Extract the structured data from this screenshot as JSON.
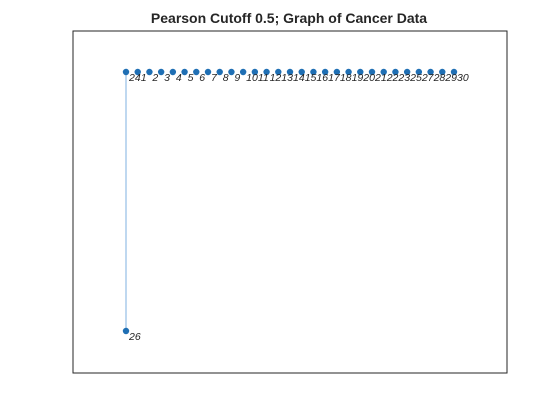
{
  "chart_data": {
    "type": "graph",
    "title": "Pearson Cutoff 0.5; Graph of Cancer Data",
    "axes_box": "on",
    "ticks": "off",
    "grid": "off",
    "colors": {
      "node": "#1f6fb4",
      "edge": "#7fb2e0",
      "text": "#262626",
      "axes": "#262626"
    },
    "nodes": [
      {
        "label": "24",
        "x": 1,
        "y": 2
      },
      {
        "label": "1",
        "x": 2,
        "y": 2
      },
      {
        "label": "2",
        "x": 3,
        "y": 2
      },
      {
        "label": "3",
        "x": 4,
        "y": 2
      },
      {
        "label": "4",
        "x": 5,
        "y": 2
      },
      {
        "label": "5",
        "x": 6,
        "y": 2
      },
      {
        "label": "6",
        "x": 7,
        "y": 2
      },
      {
        "label": "7",
        "x": 8,
        "y": 2
      },
      {
        "label": "8",
        "x": 9,
        "y": 2
      },
      {
        "label": "9",
        "x": 10,
        "y": 2
      },
      {
        "label": "10",
        "x": 11,
        "y": 2
      },
      {
        "label": "11",
        "x": 12,
        "y": 2
      },
      {
        "label": "12",
        "x": 13,
        "y": 2
      },
      {
        "label": "13",
        "x": 14,
        "y": 2
      },
      {
        "label": "14",
        "x": 15,
        "y": 2
      },
      {
        "label": "15",
        "x": 16,
        "y": 2
      },
      {
        "label": "16",
        "x": 17,
        "y": 2
      },
      {
        "label": "17",
        "x": 18,
        "y": 2
      },
      {
        "label": "18",
        "x": 19,
        "y": 2
      },
      {
        "label": "19",
        "x": 20,
        "y": 2
      },
      {
        "label": "20",
        "x": 21,
        "y": 2
      },
      {
        "label": "21",
        "x": 22,
        "y": 2
      },
      {
        "label": "22",
        "x": 23,
        "y": 2
      },
      {
        "label": "23",
        "x": 24,
        "y": 2
      },
      {
        "label": "25",
        "x": 25,
        "y": 2
      },
      {
        "label": "27",
        "x": 26,
        "y": 2
      },
      {
        "label": "28",
        "x": 27,
        "y": 2
      },
      {
        "label": "29",
        "x": 28,
        "y": 2
      },
      {
        "label": "30",
        "x": 29,
        "y": 2
      },
      {
        "label": "26",
        "x": 1,
        "y": 1
      }
    ],
    "edges": [
      {
        "source": "24",
        "target": "26"
      }
    ],
    "xlim": [
      0,
      30
    ],
    "ylim": [
      0,
      2.2
    ]
  }
}
